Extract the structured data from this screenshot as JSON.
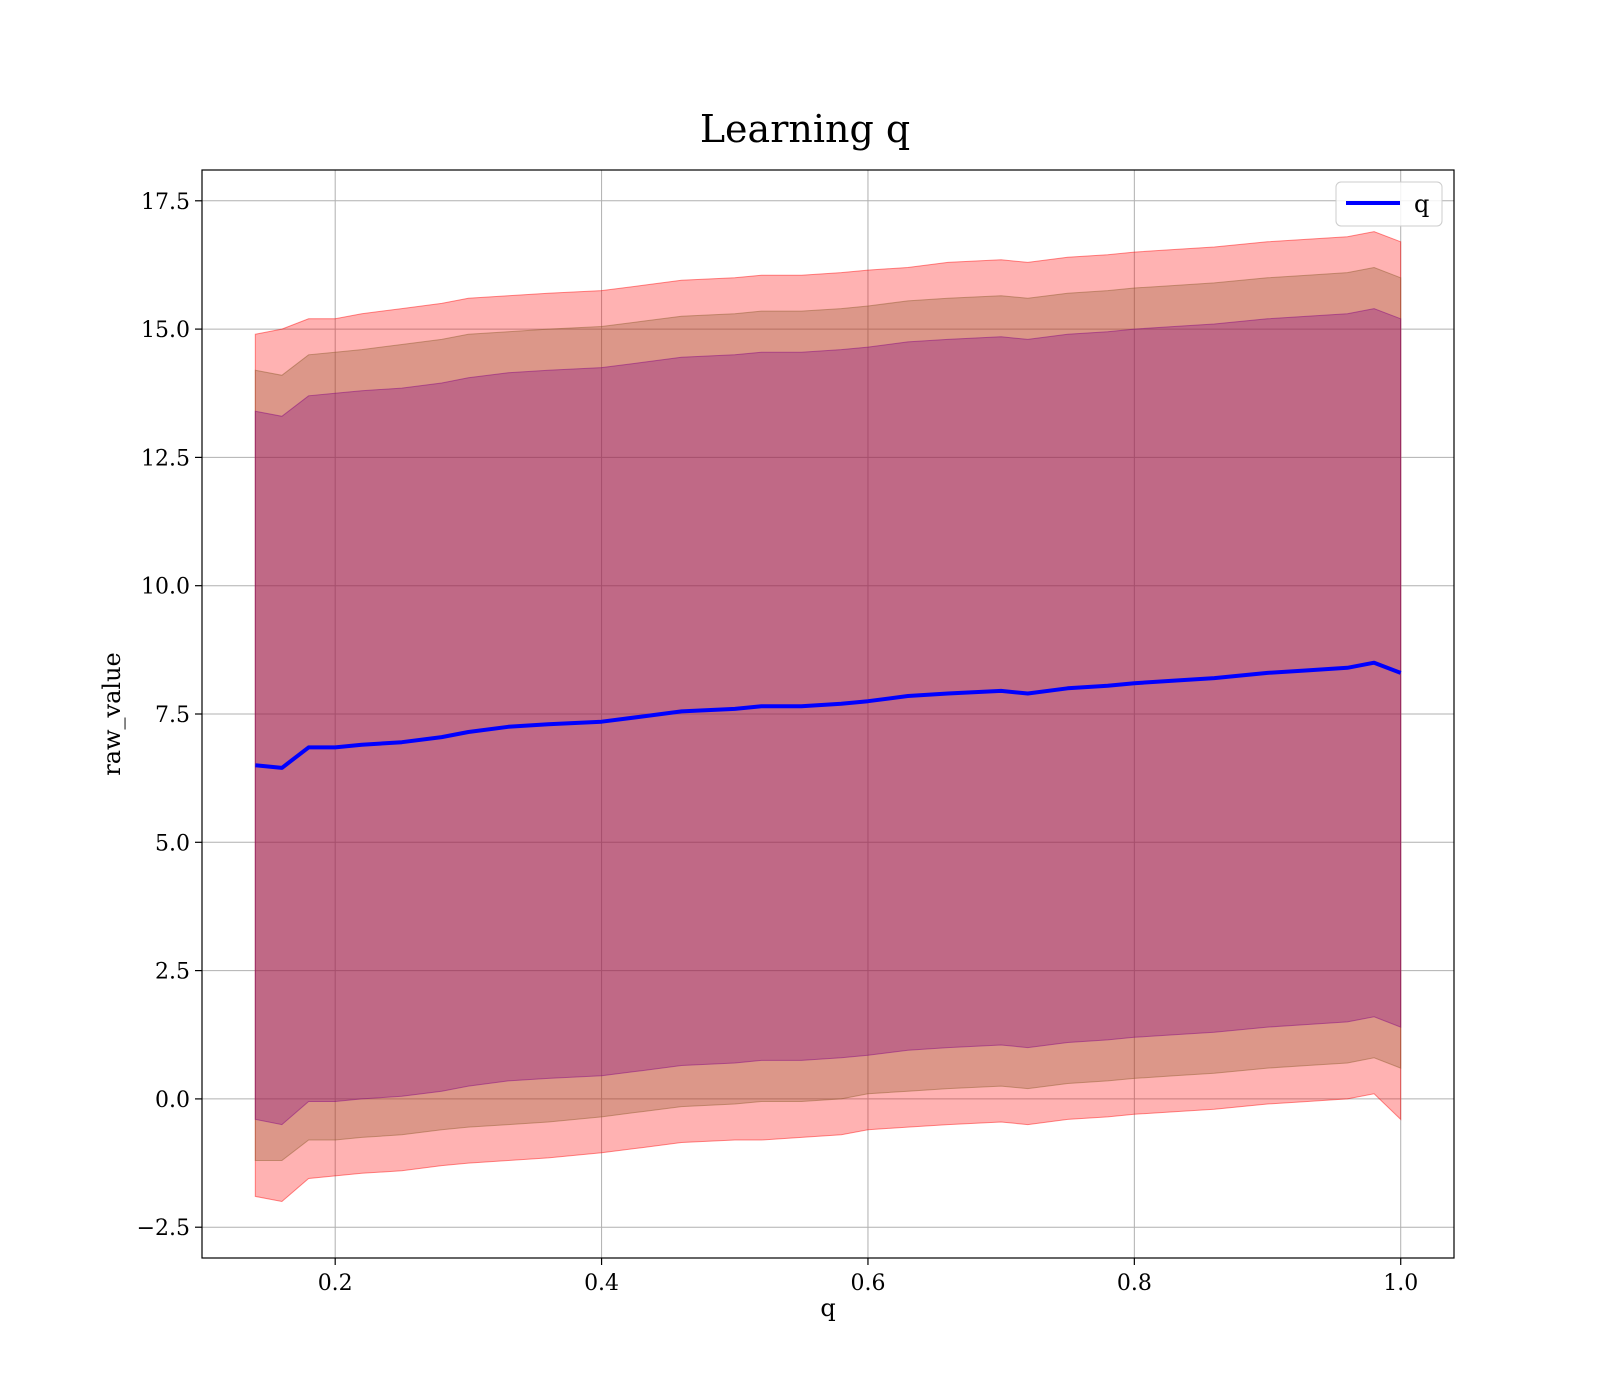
{
  "chart_data": {
    "type": "line",
    "title": "Learning q",
    "xlabel": "q",
    "ylabel": "raw_value",
    "xlim": [
      0.1,
      1.04
    ],
    "ylim": [
      -3.1,
      18.1
    ],
    "x_ticks": [
      0.2,
      0.4,
      0.6,
      0.8,
      1.0
    ],
    "x_tick_labels": [
      "0.2",
      "0.4",
      "0.6",
      "0.8",
      "1.0"
    ],
    "y_ticks": [
      -2.5,
      0.0,
      2.5,
      5.0,
      7.5,
      10.0,
      12.5,
      15.0,
      17.5
    ],
    "y_tick_labels": [
      "−2.5",
      "0.0",
      "2.5",
      "5.0",
      "7.5",
      "10.0",
      "12.5",
      "15.0",
      "17.5"
    ],
    "grid": true,
    "legend_position": "upper-right",
    "colors": {
      "line": "#0000ff",
      "band_outer": "#ff0000",
      "band_middle": "#8b5a2b",
      "band_inner": "#800080",
      "grid": "#b0b0b0",
      "axes": "#000000"
    },
    "bands": [
      {
        "series": "outer",
        "alpha": 0.3,
        "sd_multiplier": 3
      },
      {
        "series": "middle",
        "alpha": 0.3,
        "sd_multiplier": 2.5
      },
      {
        "series": "inner",
        "alpha": 0.3,
        "sd_multiplier": 2
      }
    ],
    "series": [
      {
        "name": "q",
        "x": [
          0.14,
          0.16,
          0.18,
          0.2,
          0.22,
          0.25,
          0.28,
          0.3,
          0.33,
          0.36,
          0.4,
          0.43,
          0.46,
          0.5,
          0.52,
          0.55,
          0.58,
          0.6,
          0.63,
          0.66,
          0.7,
          0.72,
          0.75,
          0.78,
          0.8,
          0.83,
          0.86,
          0.9,
          0.93,
          0.96,
          0.98,
          1.0
        ],
        "y": [
          6.5,
          6.45,
          6.85,
          6.85,
          6.9,
          6.95,
          7.05,
          7.15,
          7.25,
          7.3,
          7.35,
          7.45,
          7.55,
          7.6,
          7.65,
          7.65,
          7.7,
          7.75,
          7.85,
          7.9,
          7.95,
          7.9,
          8.0,
          8.05,
          8.1,
          8.15,
          8.2,
          8.3,
          8.35,
          8.4,
          8.5,
          8.3
        ],
        "outer_upper": [
          14.9,
          15.0,
          15.2,
          15.2,
          15.3,
          15.4,
          15.5,
          15.6,
          15.65,
          15.7,
          15.75,
          15.85,
          15.95,
          16.0,
          16.05,
          16.05,
          16.1,
          16.15,
          16.2,
          16.3,
          16.35,
          16.3,
          16.4,
          16.45,
          16.5,
          16.55,
          16.6,
          16.7,
          16.75,
          16.8,
          16.9,
          16.7
        ],
        "outer_lower": [
          -1.9,
          -2.0,
          -1.55,
          -1.5,
          -1.45,
          -1.4,
          -1.3,
          -1.25,
          -1.2,
          -1.15,
          -1.05,
          -0.95,
          -0.85,
          -0.8,
          -0.8,
          -0.75,
          -0.7,
          -0.6,
          -0.55,
          -0.5,
          -0.45,
          -0.5,
          -0.4,
          -0.35,
          -0.3,
          -0.25,
          -0.2,
          -0.1,
          -0.05,
          0.0,
          0.1,
          -0.4
        ],
        "middle_upper": [
          14.2,
          14.1,
          14.5,
          14.55,
          14.6,
          14.7,
          14.8,
          14.9,
          14.95,
          15.0,
          15.05,
          15.15,
          15.25,
          15.3,
          15.35,
          15.35,
          15.4,
          15.45,
          15.55,
          15.6,
          15.65,
          15.6,
          15.7,
          15.75,
          15.8,
          15.85,
          15.9,
          16.0,
          16.05,
          16.1,
          16.2,
          16.0
        ],
        "middle_lower": [
          -1.2,
          -1.2,
          -0.8,
          -0.8,
          -0.75,
          -0.7,
          -0.6,
          -0.55,
          -0.5,
          -0.45,
          -0.35,
          -0.25,
          -0.15,
          -0.1,
          -0.05,
          -0.05,
          0.0,
          0.1,
          0.15,
          0.2,
          0.25,
          0.2,
          0.3,
          0.35,
          0.4,
          0.45,
          0.5,
          0.6,
          0.65,
          0.7,
          0.8,
          0.6
        ],
        "inner_upper": [
          13.4,
          13.3,
          13.7,
          13.75,
          13.8,
          13.85,
          13.95,
          14.05,
          14.15,
          14.2,
          14.25,
          14.35,
          14.45,
          14.5,
          14.55,
          14.55,
          14.6,
          14.65,
          14.75,
          14.8,
          14.85,
          14.8,
          14.9,
          14.95,
          15.0,
          15.05,
          15.1,
          15.2,
          15.25,
          15.3,
          15.4,
          15.2
        ],
        "inner_lower": [
          -0.4,
          -0.5,
          -0.05,
          -0.05,
          0.0,
          0.05,
          0.15,
          0.25,
          0.35,
          0.4,
          0.45,
          0.55,
          0.65,
          0.7,
          0.75,
          0.75,
          0.8,
          0.85,
          0.95,
          1.0,
          1.05,
          1.0,
          1.1,
          1.15,
          1.2,
          1.25,
          1.3,
          1.4,
          1.45,
          1.5,
          1.6,
          1.4
        ]
      }
    ]
  }
}
